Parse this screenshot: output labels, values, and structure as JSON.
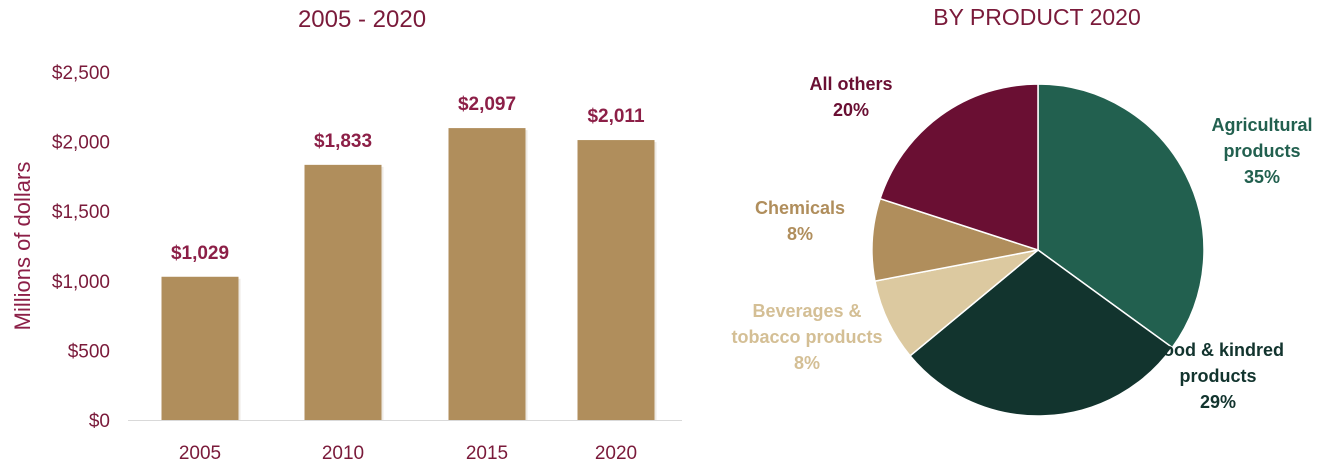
{
  "colors": {
    "accent": "#8c1f47",
    "bar": "#b08e5c",
    "axis_text": "#8c1f47",
    "tick_text": "#7a1a3a"
  },
  "chart_data": [
    {
      "type": "bar",
      "title": "2005 - 2020",
      "xlabel": "",
      "ylabel": "Millions of dollars",
      "categories": [
        "2005",
        "2010",
        "2015",
        "2020"
      ],
      "values": [
        1029,
        1833,
        2097,
        2011
      ],
      "value_labels": [
        "$1,029",
        "$1,833",
        "$2,097",
        "$2,011"
      ],
      "ylim": [
        0,
        2500
      ],
      "yticks": [
        0,
        500,
        1000,
        1500,
        2000,
        2500
      ],
      "ytick_labels": [
        "$0",
        "$500",
        "$1,000",
        "$1,500",
        "$2,000",
        "$2,500"
      ],
      "grid": false
    },
    {
      "type": "pie",
      "title": "BY PRODUCT 2020",
      "slices": [
        {
          "label_lines": [
            "Agricultural",
            "products",
            "35%"
          ],
          "value": 35,
          "color": "#22604f"
        },
        {
          "label_lines": [
            "Food & kindred",
            "products",
            "29%"
          ],
          "value": 29,
          "color": "#12342e"
        },
        {
          "label_lines": [
            "Beverages &",
            "tobacco products",
            "8%"
          ],
          "value": 8,
          "color": "#dcc9a0"
        },
        {
          "label_lines": [
            "Chemicals",
            "8%"
          ],
          "value": 8,
          "color": "#b08e5c"
        },
        {
          "label_lines": [
            "All others",
            "20%"
          ],
          "value": 20,
          "color": "#6a0f33"
        }
      ],
      "start": "12 o'clock",
      "direction": "clockwise"
    }
  ]
}
